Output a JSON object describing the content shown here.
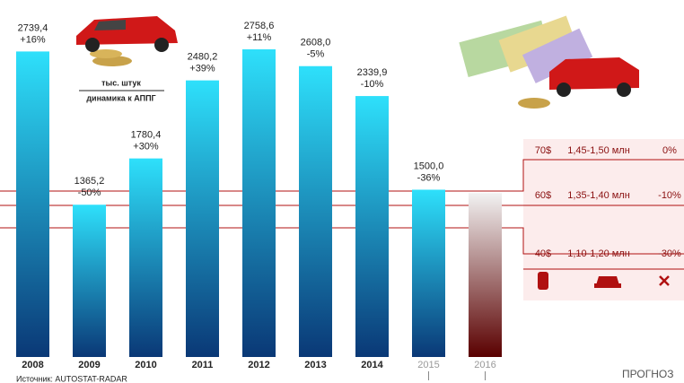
{
  "chart_data": {
    "type": "bar",
    "categories": [
      "2008",
      "2009",
      "2010",
      "2011",
      "2012",
      "2013",
      "2014",
      "2015",
      "2016"
    ],
    "values": [
      2739.4,
      1365.2,
      1780.4,
      2480.2,
      2758.6,
      2608.0,
      2339.9,
      1500.0,
      1470
    ],
    "value_labels": [
      "2739,4",
      "1365,2",
      "1780,4",
      "2480,2",
      "2758,6",
      "2608,0",
      "2339,9",
      "1500,0",
      null
    ],
    "change_labels": [
      "+16%",
      "-50%",
      "+30%",
      "+39%",
      "+11%",
      "-5%",
      "-10%",
      "-36%",
      null
    ],
    "bar_colors": [
      [
        "#2ee0fb",
        "#0a3876"
      ],
      [
        "#2ee0fb",
        "#0a3876"
      ],
      [
        "#2ee0fb",
        "#0a3876"
      ],
      [
        "#2ee0fb",
        "#0a3876"
      ],
      [
        "#2ee0fb",
        "#0a3876"
      ],
      [
        "#2ee0fb",
        "#0a3876"
      ],
      [
        "#2ee0fb",
        "#0a3876"
      ],
      [
        "#2ee0fb",
        "#0a3876"
      ],
      [
        "#f2f2f2",
        "#5a0000"
      ]
    ],
    "category_colors": [
      "#222",
      "#222",
      "#222",
      "#222",
      "#222",
      "#222",
      "#222",
      "#999",
      "#999"
    ],
    "ylim": [
      0,
      3000
    ],
    "unit_label": "тыс. штук",
    "change_note": "динамика к АППГ",
    "source": "Источник: AUTOSTAT-RADAR",
    "forecast_label": "ПРОГНОЗ",
    "forecast_table": {
      "rows": [
        [
          "70$",
          "1,45-1,50 млн",
          "0%"
        ],
        [
          "60$",
          "1,35-1,40 млн",
          "-10%"
        ],
        [
          "40$",
          "1,10-1,20 млн",
          "-30%"
        ]
      ]
    }
  }
}
